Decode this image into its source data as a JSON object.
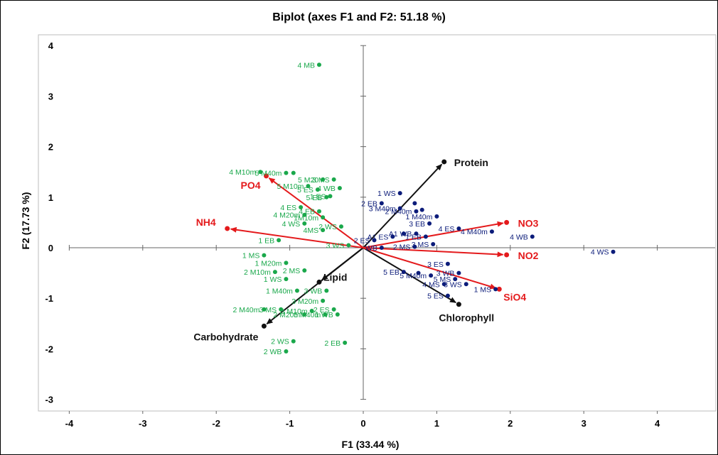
{
  "chart_data": {
    "type": "scatter",
    "title": "Biplot (axes F1 and F2: 51.18 %)",
    "xlabel": "F1 (33.44 %)",
    "ylabel": "F2 (17.73 %)",
    "xlim": [
      -4,
      5
    ],
    "ylim": [
      -3,
      4
    ],
    "xticks": [
      -4,
      -3,
      -2,
      -1,
      0,
      1,
      2,
      3,
      4
    ],
    "yticks": [
      -3,
      -2,
      -1,
      0,
      1,
      2,
      3,
      4
    ],
    "xtick_labels": [
      "-4",
      "-3",
      "-2",
      "-1",
      "0",
      "1",
      "2",
      "3",
      "4"
    ],
    "ytick_labels": [
      "-3",
      "-2",
      "-1",
      "0",
      "1",
      "2",
      "3",
      "4"
    ],
    "grid": false,
    "colors": {
      "green": "#1aa84b",
      "navy": "#0c1c7a",
      "red": "#e41a1c",
      "black": "#111111",
      "frame": "#bdbdbd"
    },
    "series": [
      {
        "color": "green",
        "points": [
          {
            "x": -0.6,
            "y": 3.62,
            "label": "4 MB"
          },
          {
            "x": -1.4,
            "y": 1.5,
            "label": "4 M10m"
          },
          {
            "x": -1.05,
            "y": 1.48,
            "label": "5 M40m"
          },
          {
            "x": -0.95,
            "y": 1.48,
            "label": ""
          },
          {
            "x": -0.55,
            "y": 1.35,
            "label": "5 M20"
          },
          {
            "x": -0.4,
            "y": 1.35,
            "label": "3 MS"
          },
          {
            "x": -0.75,
            "y": 1.22,
            "label": "5 M10m"
          },
          {
            "x": -0.62,
            "y": 1.15,
            "label": "5 ES"
          },
          {
            "x": -0.32,
            "y": 1.18,
            "label": "4 WB"
          },
          {
            "x": -0.5,
            "y": 1.0,
            "label": "5 EB"
          },
          {
            "x": -0.45,
            "y": 1.02,
            "label": "1 ES"
          },
          {
            "x": -0.85,
            "y": 0.8,
            "label": "4 ES"
          },
          {
            "x": -0.6,
            "y": 0.72,
            "label": "4 EB"
          },
          {
            "x": -0.8,
            "y": 0.65,
            "label": "4 M20m"
          },
          {
            "x": -0.55,
            "y": 0.6,
            "label": "1M10m"
          },
          {
            "x": -0.8,
            "y": 0.48,
            "label": "4 WS"
          },
          {
            "x": -0.3,
            "y": 0.42,
            "label": "2 WS"
          },
          {
            "x": -0.55,
            "y": 0.35,
            "label": "4MS"
          },
          {
            "x": -1.15,
            "y": 0.15,
            "label": "1 EB"
          },
          {
            "x": -0.2,
            "y": 0.05,
            "label": "3 WS"
          },
          {
            "x": -1.35,
            "y": -0.15,
            "label": "1 MS"
          },
          {
            "x": -1.05,
            "y": -0.3,
            "label": "1 M20m"
          },
          {
            "x": -0.8,
            "y": -0.45,
            "label": "2 MS"
          },
          {
            "x": -1.2,
            "y": -0.48,
            "label": "2 M10m"
          },
          {
            "x": -1.05,
            "y": -0.62,
            "label": "1 WS"
          },
          {
            "x": -0.9,
            "y": -0.85,
            "label": "1 M40m"
          },
          {
            "x": -0.5,
            "y": -0.85,
            "label": "3 WB"
          },
          {
            "x": -0.55,
            "y": -1.05,
            "label": "3 M20m"
          },
          {
            "x": -1.35,
            "y": -1.22,
            "label": "2 M40m"
          },
          {
            "x": -1.12,
            "y": -1.22,
            "label": "3 MS"
          },
          {
            "x": -0.7,
            "y": -1.25,
            "label": "3 M10m"
          },
          {
            "x": -0.4,
            "y": -1.22,
            "label": "2 ES"
          },
          {
            "x": -0.8,
            "y": -1.32,
            "label": "2 M20m"
          },
          {
            "x": -0.52,
            "y": -1.32,
            "label": "5 M40m"
          },
          {
            "x": -0.35,
            "y": -1.32,
            "label": "1 WB"
          },
          {
            "x": -0.95,
            "y": -1.85,
            "label": "2 WS"
          },
          {
            "x": -0.25,
            "y": -1.88,
            "label": "2 EB"
          },
          {
            "x": -1.05,
            "y": -2.05,
            "label": "2 WB"
          }
        ]
      },
      {
        "color": "navy",
        "points": [
          {
            "x": 0.5,
            "y": 1.08,
            "label": "1 WS"
          },
          {
            "x": 0.25,
            "y": 0.88,
            "label": "2 EB"
          },
          {
            "x": 0.7,
            "y": 0.88,
            "label": ""
          },
          {
            "x": 0.5,
            "y": 0.78,
            "label": "3 M40m"
          },
          {
            "x": 0.8,
            "y": 0.75,
            "label": ""
          },
          {
            "x": 0.72,
            "y": 0.72,
            "label": "2 M40m"
          },
          {
            "x": 1.0,
            "y": 0.62,
            "label": "1 M40m"
          },
          {
            "x": 0.9,
            "y": 0.48,
            "label": "3 EB"
          },
          {
            "x": 1.3,
            "y": 0.38,
            "label": "4 ES"
          },
          {
            "x": 0.4,
            "y": 0.22,
            "label": "A1 ES"
          },
          {
            "x": 0.55,
            "y": 0.28,
            "label": ""
          },
          {
            "x": 0.72,
            "y": 0.28,
            "label": "A1 WB"
          },
          {
            "x": 0.85,
            "y": 0.22,
            "label": "1 EB"
          },
          {
            "x": 0.15,
            "y": 0.15,
            "label": "2 ES"
          },
          {
            "x": 1.75,
            "y": 0.32,
            "label": "4 M40m"
          },
          {
            "x": 2.3,
            "y": 0.22,
            "label": "4 WB"
          },
          {
            "x": 0.95,
            "y": 0.07,
            "label": "3 MS"
          },
          {
            "x": 0.25,
            "y": 0.0,
            "label": "WB"
          },
          {
            "x": 0.7,
            "y": 0.02,
            "label": "2 MS"
          },
          {
            "x": 3.4,
            "y": -0.08,
            "label": "4 WS"
          },
          {
            "x": 1.15,
            "y": -0.32,
            "label": "3 ES"
          },
          {
            "x": 0.55,
            "y": -0.48,
            "label": "5 EB"
          },
          {
            "x": 1.3,
            "y": -0.5,
            "label": "3 WB"
          },
          {
            "x": 0.75,
            "y": -0.5,
            "label": ""
          },
          {
            "x": 0.92,
            "y": -0.55,
            "label": "5 M40m"
          },
          {
            "x": 1.25,
            "y": -0.62,
            "label": "5 MS"
          },
          {
            "x": 1.4,
            "y": -0.72,
            "label": "3 WS"
          },
          {
            "x": 1.1,
            "y": -0.72,
            "label": "4 MS"
          },
          {
            "x": 1.8,
            "y": -0.82,
            "label": "1 MS"
          },
          {
            "x": 1.15,
            "y": -0.95,
            "label": "5 ES"
          }
        ]
      }
    ],
    "vectors": [
      {
        "name": "Protein",
        "x": 1.1,
        "y": 1.7,
        "color": "black"
      },
      {
        "name": "Lipid",
        "x": -0.6,
        "y": -0.68,
        "color": "black"
      },
      {
        "name": "Carbohydrate",
        "x": -1.35,
        "y": -1.55,
        "color": "black"
      },
      {
        "name": "Chlorophyll",
        "x": 1.3,
        "y": -1.12,
        "color": "black"
      },
      {
        "name": "PO4",
        "x": -1.32,
        "y": 1.42,
        "color": "red"
      },
      {
        "name": "NH4",
        "x": -1.85,
        "y": 0.38,
        "color": "red"
      },
      {
        "name": "NO3",
        "x": 1.95,
        "y": 0.5,
        "color": "red"
      },
      {
        "name": "NO2",
        "x": 1.95,
        "y": -0.14,
        "color": "red"
      },
      {
        "name": "SiO4",
        "x": 1.85,
        "y": -0.82,
        "color": "red"
      }
    ]
  }
}
